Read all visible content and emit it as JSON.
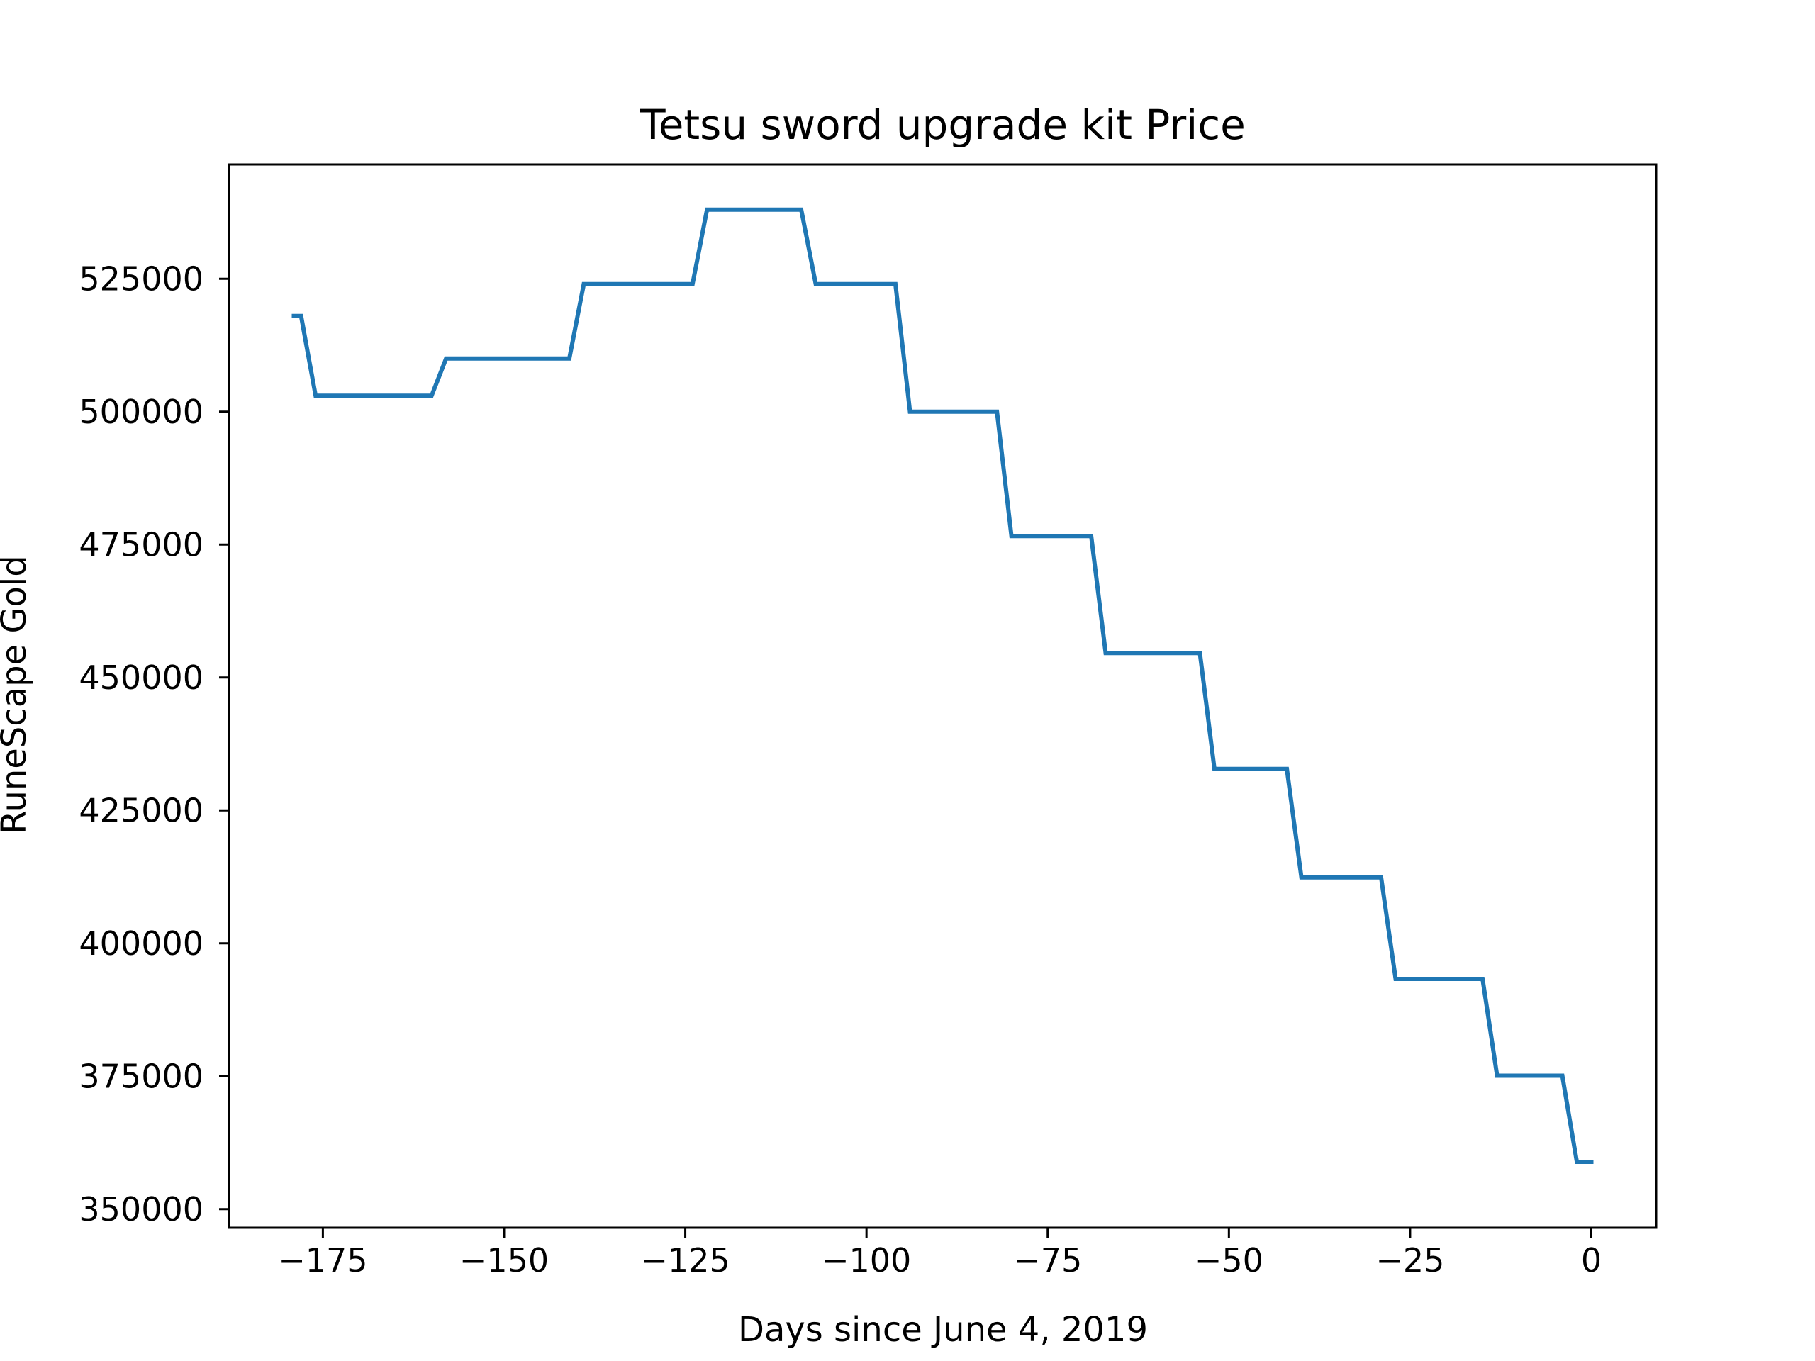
{
  "chart_data": {
    "type": "line",
    "title": "Tetsu sword upgrade kit Price",
    "xlabel": "Days since June 4, 2019",
    "ylabel": "RuneScape Gold",
    "xlim": [
      -187.95,
      8.95
    ],
    "ylim": [
      346500,
      546500
    ],
    "xticks": [
      -175,
      -150,
      -125,
      -100,
      -75,
      -50,
      -25,
      0
    ],
    "xtick_labels": [
      "−175",
      "−150",
      "−125",
      "−100",
      "−75",
      "−50",
      "−25",
      "0"
    ],
    "yticks": [
      350000,
      375000,
      400000,
      425000,
      450000,
      475000,
      500000,
      525000
    ],
    "ytick_labels": [
      "350000",
      "375000",
      "400000",
      "425000",
      "450000",
      "475000",
      "500000",
      "525000"
    ],
    "grid": false,
    "legend": "none",
    "series": [
      {
        "color": "#1f77b4",
        "x": [
          -179,
          -178,
          -177,
          -176,
          -161,
          -160,
          -159,
          -158,
          -142,
          -141,
          -140,
          -139,
          -125,
          -124,
          -123,
          -122,
          -110,
          -109,
          -108,
          -107,
          -97,
          -96,
          -95,
          -94,
          -83,
          -82,
          -81,
          -80,
          -70,
          -69,
          -68,
          -67,
          -55,
          -54,
          -53,
          -52,
          -43,
          -42,
          -41,
          -40,
          -30,
          -29,
          -28,
          -27,
          -16,
          -15,
          -14,
          -13,
          -5,
          -4,
          -3,
          -2,
          -1,
          0
        ],
        "y": [
          518000,
          518000,
          510500,
          503000,
          503000,
          503000,
          506500,
          510000,
          510000,
          510000,
          517000,
          524000,
          524000,
          524000,
          531000,
          538000,
          538000,
          538000,
          531000,
          524000,
          524000,
          524000,
          512000,
          500000,
          500000,
          500000,
          488300,
          476600,
          476600,
          476600,
          465600,
          454600,
          454600,
          454600,
          443700,
          432800,
          432800,
          432800,
          422600,
          412400,
          412400,
          412400,
          402900,
          393300,
          393300,
          393300,
          384200,
          375100,
          375100,
          375100,
          367000,
          358900,
          358900,
          358900
        ]
      }
    ]
  }
}
